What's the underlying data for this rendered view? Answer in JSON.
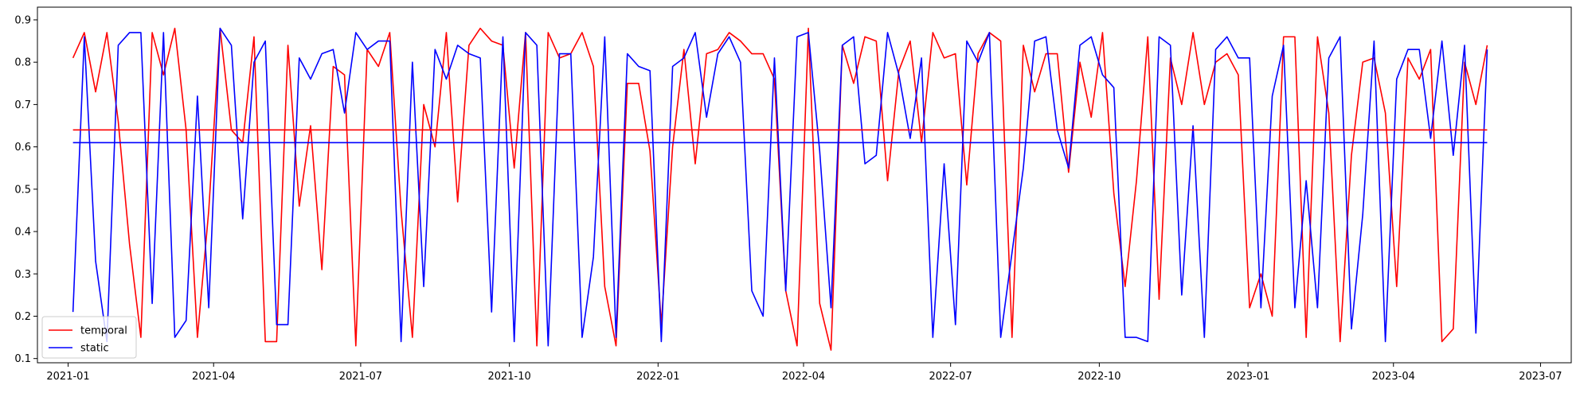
{
  "chart_data": {
    "type": "line",
    "xlabel": "",
    "ylabel": "",
    "x_type": "date",
    "xlim": [
      "2020-12-13",
      "2023-07-20"
    ],
    "ylim": [
      0.09,
      0.93
    ],
    "x_ticks": [
      {
        "date": "2021-01-01",
        "label": "2021-01"
      },
      {
        "date": "2021-04-01",
        "label": "2021-04"
      },
      {
        "date": "2021-07-01",
        "label": "2021-07"
      },
      {
        "date": "2021-10-01",
        "label": "2021-10"
      },
      {
        "date": "2022-01-01",
        "label": "2022-01"
      },
      {
        "date": "2022-04-01",
        "label": "2022-04"
      },
      {
        "date": "2022-07-01",
        "label": "2022-07"
      },
      {
        "date": "2022-10-01",
        "label": "2022-10"
      },
      {
        "date": "2023-01-01",
        "label": "2023-01"
      },
      {
        "date": "2023-04-01",
        "label": "2023-04"
      },
      {
        "date": "2023-07-01",
        "label": "2023-07"
      }
    ],
    "y_ticks": [
      {
        "value": 0.1,
        "label": "0.1"
      },
      {
        "value": 0.2,
        "label": "0.2"
      },
      {
        "value": 0.3,
        "label": "0.3"
      },
      {
        "value": 0.4,
        "label": "0.4"
      },
      {
        "value": 0.5,
        "label": "0.5"
      },
      {
        "value": 0.6,
        "label": "0.6"
      },
      {
        "value": 0.7,
        "label": "0.7"
      },
      {
        "value": 0.8,
        "label": "0.8"
      },
      {
        "value": 0.9,
        "label": "0.9"
      }
    ],
    "grid": false,
    "legend": {
      "position": "lower-left"
    },
    "series": [
      {
        "name": "temporal",
        "color": "#ff0000",
        "points": [
          [
            "2021-01-04",
            0.81
          ],
          [
            "2021-01-11",
            0.87
          ],
          [
            "2021-01-18",
            0.73
          ],
          [
            "2021-01-25",
            0.87
          ],
          [
            "2021-02-01",
            0.66
          ],
          [
            "2021-02-08",
            0.37
          ],
          [
            "2021-02-15",
            0.15
          ],
          [
            "2021-02-22",
            0.87
          ],
          [
            "2021-03-01",
            0.77
          ],
          [
            "2021-03-08",
            0.88
          ],
          [
            "2021-03-15",
            0.64
          ],
          [
            "2021-03-22",
            0.15
          ],
          [
            "2021-03-29",
            0.45
          ],
          [
            "2021-04-05",
            0.88
          ],
          [
            "2021-04-12",
            0.64
          ],
          [
            "2021-04-19",
            0.61
          ],
          [
            "2021-04-26",
            0.86
          ],
          [
            "2021-05-03",
            0.14
          ],
          [
            "2021-05-10",
            0.14
          ],
          [
            "2021-05-17",
            0.84
          ],
          [
            "2021-05-24",
            0.46
          ],
          [
            "2021-05-31",
            0.65
          ],
          [
            "2021-06-07",
            0.31
          ],
          [
            "2021-06-14",
            0.79
          ],
          [
            "2021-06-21",
            0.77
          ],
          [
            "2021-06-28",
            0.13
          ],
          [
            "2021-07-05",
            0.83
          ],
          [
            "2021-07-12",
            0.79
          ],
          [
            "2021-07-19",
            0.87
          ],
          [
            "2021-07-26",
            0.45
          ],
          [
            "2021-08-02",
            0.15
          ],
          [
            "2021-08-09",
            0.7
          ],
          [
            "2021-08-16",
            0.6
          ],
          [
            "2021-08-23",
            0.87
          ],
          [
            "2021-08-30",
            0.47
          ],
          [
            "2021-09-06",
            0.84
          ],
          [
            "2021-09-13",
            0.88
          ],
          [
            "2021-09-20",
            0.85
          ],
          [
            "2021-09-27",
            0.84
          ],
          [
            "2021-10-04",
            0.55
          ],
          [
            "2021-10-11",
            0.87
          ],
          [
            "2021-10-18",
            0.13
          ],
          [
            "2021-10-25",
            0.87
          ],
          [
            "2021-11-01",
            0.81
          ],
          [
            "2021-11-08",
            0.82
          ],
          [
            "2021-11-15",
            0.87
          ],
          [
            "2021-11-22",
            0.79
          ],
          [
            "2021-11-29",
            0.27
          ],
          [
            "2021-12-06",
            0.13
          ],
          [
            "2021-12-13",
            0.75
          ],
          [
            "2021-12-20",
            0.75
          ],
          [
            "2021-12-27",
            0.59
          ],
          [
            "2022-01-03",
            0.18
          ],
          [
            "2022-01-10",
            0.6
          ],
          [
            "2022-01-17",
            0.83
          ],
          [
            "2022-01-24",
            0.56
          ],
          [
            "2022-01-31",
            0.82
          ],
          [
            "2022-02-07",
            0.83
          ],
          [
            "2022-02-14",
            0.87
          ],
          [
            "2022-02-21",
            0.85
          ],
          [
            "2022-02-28",
            0.82
          ],
          [
            "2022-03-07",
            0.82
          ],
          [
            "2022-03-14",
            0.76
          ],
          [
            "2022-03-21",
            0.26
          ],
          [
            "2022-03-28",
            0.13
          ],
          [
            "2022-04-04",
            0.88
          ],
          [
            "2022-04-11",
            0.23
          ],
          [
            "2022-04-18",
            0.12
          ],
          [
            "2022-04-25",
            0.84
          ],
          [
            "2022-05-02",
            0.75
          ],
          [
            "2022-05-09",
            0.86
          ],
          [
            "2022-05-16",
            0.85
          ],
          [
            "2022-05-23",
            0.52
          ],
          [
            "2022-05-30",
            0.78
          ],
          [
            "2022-06-06",
            0.85
          ],
          [
            "2022-06-13",
            0.61
          ],
          [
            "2022-06-20",
            0.87
          ],
          [
            "2022-06-27",
            0.81
          ],
          [
            "2022-07-04",
            0.82
          ],
          [
            "2022-07-11",
            0.51
          ],
          [
            "2022-07-18",
            0.82
          ],
          [
            "2022-07-25",
            0.87
          ],
          [
            "2022-08-01",
            0.85
          ],
          [
            "2022-08-08",
            0.15
          ],
          [
            "2022-08-15",
            0.84
          ],
          [
            "2022-08-22",
            0.73
          ],
          [
            "2022-08-29",
            0.82
          ],
          [
            "2022-09-05",
            0.82
          ],
          [
            "2022-09-12",
            0.54
          ],
          [
            "2022-09-19",
            0.8
          ],
          [
            "2022-09-26",
            0.67
          ],
          [
            "2022-10-03",
            0.87
          ],
          [
            "2022-10-10",
            0.49
          ],
          [
            "2022-10-17",
            0.27
          ],
          [
            "2022-10-24",
            0.52
          ],
          [
            "2022-10-31",
            0.86
          ],
          [
            "2022-11-07",
            0.24
          ],
          [
            "2022-11-14",
            0.81
          ],
          [
            "2022-11-21",
            0.7
          ],
          [
            "2022-11-28",
            0.87
          ],
          [
            "2022-12-05",
            0.7
          ],
          [
            "2022-12-12",
            0.8
          ],
          [
            "2022-12-19",
            0.82
          ],
          [
            "2022-12-26",
            0.77
          ],
          [
            "2023-01-02",
            0.22
          ],
          [
            "2023-01-09",
            0.3
          ],
          [
            "2023-01-16",
            0.2
          ],
          [
            "2023-01-23",
            0.86
          ],
          [
            "2023-01-30",
            0.86
          ],
          [
            "2023-02-06",
            0.15
          ],
          [
            "2023-02-13",
            0.86
          ],
          [
            "2023-02-20",
            0.68
          ],
          [
            "2023-02-27",
            0.14
          ],
          [
            "2023-03-06",
            0.58
          ],
          [
            "2023-03-13",
            0.8
          ],
          [
            "2023-03-20",
            0.81
          ],
          [
            "2023-03-27",
            0.68
          ],
          [
            "2023-04-03",
            0.27
          ],
          [
            "2023-04-10",
            0.81
          ],
          [
            "2023-04-17",
            0.76
          ],
          [
            "2023-04-24",
            0.83
          ],
          [
            "2023-05-01",
            0.14
          ],
          [
            "2023-05-08",
            0.17
          ],
          [
            "2023-05-15",
            0.8
          ],
          [
            "2023-05-22",
            0.7
          ],
          [
            "2023-05-29",
            0.84
          ]
        ]
      },
      {
        "name": "static",
        "color": "#0000ff",
        "points": [
          [
            "2021-01-04",
            0.21
          ],
          [
            "2021-01-11",
            0.86
          ],
          [
            "2021-01-18",
            0.33
          ],
          [
            "2021-01-25",
            0.14
          ],
          [
            "2021-02-01",
            0.84
          ],
          [
            "2021-02-08",
            0.87
          ],
          [
            "2021-02-15",
            0.87
          ],
          [
            "2021-02-22",
            0.23
          ],
          [
            "2021-03-01",
            0.87
          ],
          [
            "2021-03-08",
            0.15
          ],
          [
            "2021-03-15",
            0.19
          ],
          [
            "2021-03-22",
            0.72
          ],
          [
            "2021-03-29",
            0.22
          ],
          [
            "2021-04-05",
            0.88
          ],
          [
            "2021-04-12",
            0.84
          ],
          [
            "2021-04-19",
            0.43
          ],
          [
            "2021-04-26",
            0.8
          ],
          [
            "2021-05-03",
            0.85
          ],
          [
            "2021-05-10",
            0.18
          ],
          [
            "2021-05-17",
            0.18
          ],
          [
            "2021-05-24",
            0.81
          ],
          [
            "2021-05-31",
            0.76
          ],
          [
            "2021-06-07",
            0.82
          ],
          [
            "2021-06-14",
            0.83
          ],
          [
            "2021-06-21",
            0.68
          ],
          [
            "2021-06-28",
            0.87
          ],
          [
            "2021-07-05",
            0.83
          ],
          [
            "2021-07-12",
            0.85
          ],
          [
            "2021-07-19",
            0.85
          ],
          [
            "2021-07-26",
            0.14
          ],
          [
            "2021-08-02",
            0.8
          ],
          [
            "2021-08-09",
            0.27
          ],
          [
            "2021-08-16",
            0.83
          ],
          [
            "2021-08-23",
            0.76
          ],
          [
            "2021-08-30",
            0.84
          ],
          [
            "2021-09-06",
            0.82
          ],
          [
            "2021-09-13",
            0.81
          ],
          [
            "2021-09-20",
            0.21
          ],
          [
            "2021-09-27",
            0.86
          ],
          [
            "2021-10-04",
            0.14
          ],
          [
            "2021-10-11",
            0.87
          ],
          [
            "2021-10-18",
            0.84
          ],
          [
            "2021-10-25",
            0.13
          ],
          [
            "2021-11-01",
            0.82
          ],
          [
            "2021-11-08",
            0.82
          ],
          [
            "2021-11-15",
            0.15
          ],
          [
            "2021-11-22",
            0.34
          ],
          [
            "2021-11-29",
            0.86
          ],
          [
            "2021-12-06",
            0.15
          ],
          [
            "2021-12-13",
            0.82
          ],
          [
            "2021-12-20",
            0.79
          ],
          [
            "2021-12-27",
            0.78
          ],
          [
            "2022-01-03",
            0.14
          ],
          [
            "2022-01-10",
            0.79
          ],
          [
            "2022-01-17",
            0.81
          ],
          [
            "2022-01-24",
            0.87
          ],
          [
            "2022-01-31",
            0.67
          ],
          [
            "2022-02-07",
            0.82
          ],
          [
            "2022-02-14",
            0.86
          ],
          [
            "2022-02-21",
            0.8
          ],
          [
            "2022-02-28",
            0.26
          ],
          [
            "2022-03-07",
            0.2
          ],
          [
            "2022-03-14",
            0.81
          ],
          [
            "2022-03-21",
            0.26
          ],
          [
            "2022-03-28",
            0.86
          ],
          [
            "2022-04-04",
            0.87
          ],
          [
            "2022-04-11",
            0.59
          ],
          [
            "2022-04-18",
            0.22
          ],
          [
            "2022-04-25",
            0.84
          ],
          [
            "2022-05-02",
            0.86
          ],
          [
            "2022-05-09",
            0.56
          ],
          [
            "2022-05-16",
            0.58
          ],
          [
            "2022-05-23",
            0.87
          ],
          [
            "2022-05-30",
            0.77
          ],
          [
            "2022-06-06",
            0.62
          ],
          [
            "2022-06-13",
            0.81
          ],
          [
            "2022-06-20",
            0.15
          ],
          [
            "2022-06-27",
            0.56
          ],
          [
            "2022-07-04",
            0.18
          ],
          [
            "2022-07-11",
            0.85
          ],
          [
            "2022-07-18",
            0.8
          ],
          [
            "2022-07-25",
            0.87
          ],
          [
            "2022-08-01",
            0.15
          ],
          [
            "2022-08-08",
            0.35
          ],
          [
            "2022-08-15",
            0.55
          ],
          [
            "2022-08-22",
            0.85
          ],
          [
            "2022-08-29",
            0.86
          ],
          [
            "2022-09-05",
            0.64
          ],
          [
            "2022-09-12",
            0.55
          ],
          [
            "2022-09-19",
            0.84
          ],
          [
            "2022-09-26",
            0.86
          ],
          [
            "2022-10-03",
            0.77
          ],
          [
            "2022-10-10",
            0.74
          ],
          [
            "2022-10-17",
            0.15
          ],
          [
            "2022-10-24",
            0.15
          ],
          [
            "2022-10-31",
            0.14
          ],
          [
            "2022-11-07",
            0.86
          ],
          [
            "2022-11-14",
            0.84
          ],
          [
            "2022-11-21",
            0.25
          ],
          [
            "2022-11-28",
            0.65
          ],
          [
            "2022-12-05",
            0.15
          ],
          [
            "2022-12-12",
            0.83
          ],
          [
            "2022-12-19",
            0.86
          ],
          [
            "2022-12-26",
            0.81
          ],
          [
            "2023-01-02",
            0.81
          ],
          [
            "2023-01-09",
            0.22
          ],
          [
            "2023-01-16",
            0.72
          ],
          [
            "2023-01-23",
            0.84
          ],
          [
            "2023-01-30",
            0.22
          ],
          [
            "2023-02-06",
            0.52
          ],
          [
            "2023-02-13",
            0.22
          ],
          [
            "2023-02-20",
            0.81
          ],
          [
            "2023-02-27",
            0.86
          ],
          [
            "2023-03-06",
            0.17
          ],
          [
            "2023-03-13",
            0.44
          ],
          [
            "2023-03-20",
            0.85
          ],
          [
            "2023-03-27",
            0.14
          ],
          [
            "2023-04-03",
            0.76
          ],
          [
            "2023-04-10",
            0.83
          ],
          [
            "2023-04-17",
            0.83
          ],
          [
            "2023-04-24",
            0.62
          ],
          [
            "2023-05-01",
            0.85
          ],
          [
            "2023-05-08",
            0.58
          ],
          [
            "2023-05-15",
            0.84
          ],
          [
            "2023-05-22",
            0.16
          ],
          [
            "2023-05-29",
            0.83
          ]
        ]
      },
      {
        "name": "",
        "color": "#ff0000",
        "points": [
          [
            "2021-01-04",
            0.64
          ],
          [
            "2023-05-29",
            0.64
          ]
        ]
      },
      {
        "name": "",
        "color": "#0000ff",
        "points": [
          [
            "2021-01-04",
            0.61
          ],
          [
            "2023-05-29",
            0.61
          ]
        ]
      }
    ]
  }
}
